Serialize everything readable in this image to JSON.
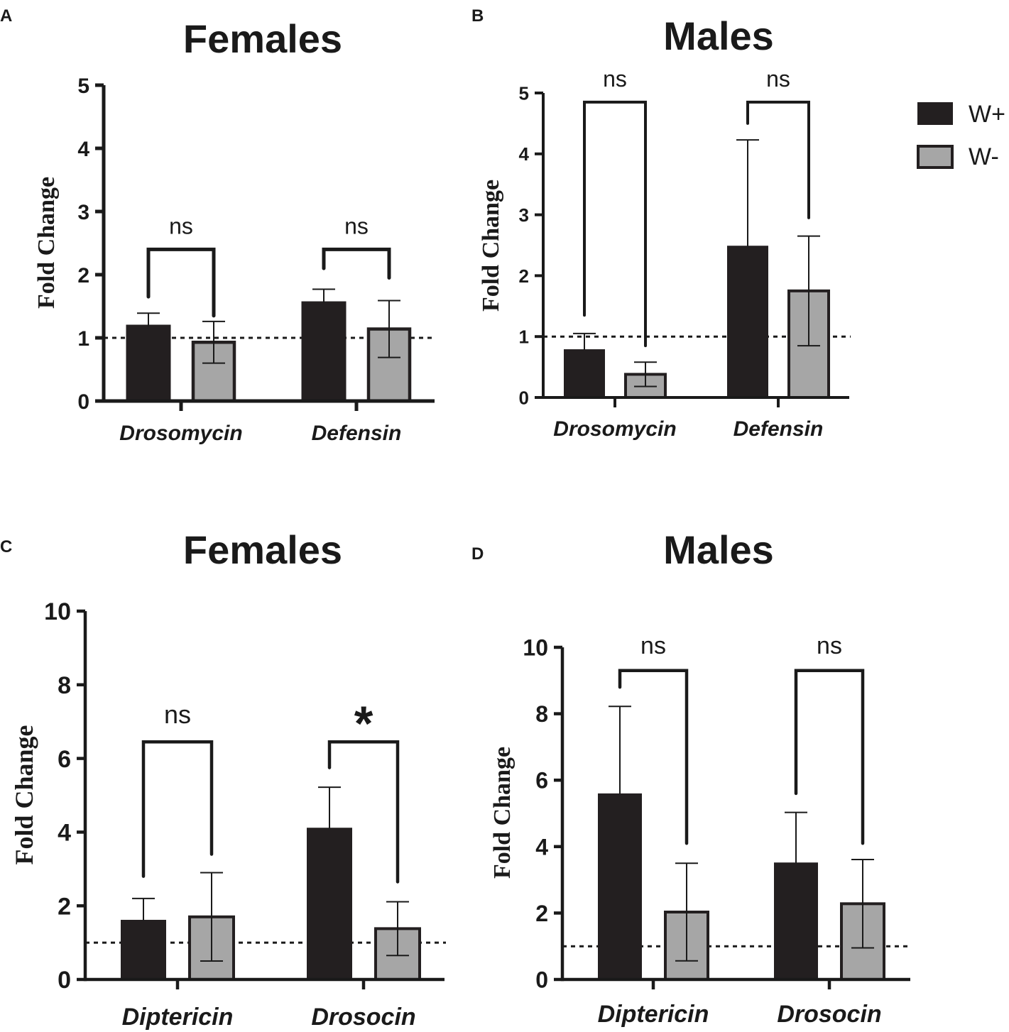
{
  "chart_data": [
    {
      "type": "bar",
      "panel": "A",
      "title": "Females",
      "ylabel": "Fold Change",
      "xlabel": "",
      "ylim": [
        0,
        5
      ],
      "yticks": [
        "0",
        "1",
        "2",
        "3",
        "4",
        "5"
      ],
      "categories": [
        "Drosomycin",
        "Defensin"
      ],
      "series": [
        {
          "name": "W+",
          "values": [
            1.18,
            1.55
          ],
          "errors": [
            0.21,
            0.22
          ]
        },
        {
          "name": "W-",
          "values": [
            0.93,
            1.14
          ],
          "errors": [
            0.33,
            0.45
          ]
        }
      ],
      "reference_line": 1,
      "significance": [
        {
          "label": "ns",
          "level": 2.4,
          "left_drop": 1.65,
          "right_drop": 1.35
        },
        {
          "label": "ns",
          "level": 2.4,
          "left_drop": 2.1,
          "right_drop": 1.95
        }
      ]
    },
    {
      "type": "bar",
      "panel": "B",
      "title": "Males",
      "ylabel": "Fold Change",
      "xlabel": "",
      "ylim": [
        0,
        5
      ],
      "yticks": [
        "0",
        "1",
        "2",
        "3",
        "4",
        "5"
      ],
      "categories": [
        "Drosomycin",
        "Defensin"
      ],
      "series": [
        {
          "name": "W+",
          "values": [
            0.78,
            2.48
          ],
          "errors": [
            0.27,
            1.75
          ]
        },
        {
          "name": "W-",
          "values": [
            0.38,
            1.75
          ],
          "errors": [
            0.2,
            0.9
          ]
        }
      ],
      "reference_line": 1,
      "significance": [
        {
          "label": "ns",
          "level": 4.85,
          "left_drop": 1.35,
          "right_drop": 0.85
        },
        {
          "label": "ns",
          "level": 4.85,
          "left_drop": 4.5,
          "right_drop": 2.95
        }
      ]
    },
    {
      "type": "bar",
      "panel": "C",
      "title": "Females",
      "ylabel": "Fold Change",
      "xlabel": "",
      "ylim": [
        0,
        10
      ],
      "yticks": [
        "0",
        "2",
        "4",
        "6",
        "8",
        "10"
      ],
      "categories": [
        "Diptericin",
        "Drosocin"
      ],
      "series": [
        {
          "name": "W+",
          "values": [
            1.6,
            4.1
          ],
          "errors": [
            0.6,
            1.12
          ]
        },
        {
          "name": "W-",
          "values": [
            1.7,
            1.38
          ],
          "errors": [
            1.2,
            0.73
          ]
        }
      ],
      "reference_line": 1,
      "significance": [
        {
          "label": "ns",
          "level": 6.45,
          "left_drop": 2.8,
          "right_drop": 3.4
        },
        {
          "label": "*",
          "level": 6.45,
          "left_drop": 5.75,
          "right_drop": 2.65
        }
      ]
    },
    {
      "type": "bar",
      "panel": "D",
      "title": "Males",
      "ylabel": "Fold Change",
      "xlabel": "",
      "ylim": [
        0,
        10
      ],
      "yticks": [
        "0",
        "2",
        "4",
        "6",
        "8",
        "10"
      ],
      "categories": [
        "Diptericin",
        "Drosocin"
      ],
      "series": [
        {
          "name": "W+",
          "values": [
            5.58,
            3.5
          ],
          "errors": [
            2.64,
            1.53
          ]
        },
        {
          "name": "W-",
          "values": [
            2.03,
            2.28
          ],
          "errors": [
            1.47,
            1.33
          ]
        }
      ],
      "reference_line": 1,
      "significance": [
        {
          "label": "ns",
          "level": 9.3,
          "left_drop": 8.8,
          "right_drop": 4.1
        },
        {
          "label": "ns",
          "level": 9.3,
          "left_drop": 5.6,
          "right_drop": 4.1
        }
      ]
    }
  ],
  "legend": [
    {
      "label": "W+",
      "color": "#231f20"
    },
    {
      "label": "W-",
      "color": "#a6a6a6"
    }
  ],
  "colors": {
    "w_plus": "#231f20",
    "w_minus": "#a6a6a6",
    "axis": "#1a1a1a"
  }
}
